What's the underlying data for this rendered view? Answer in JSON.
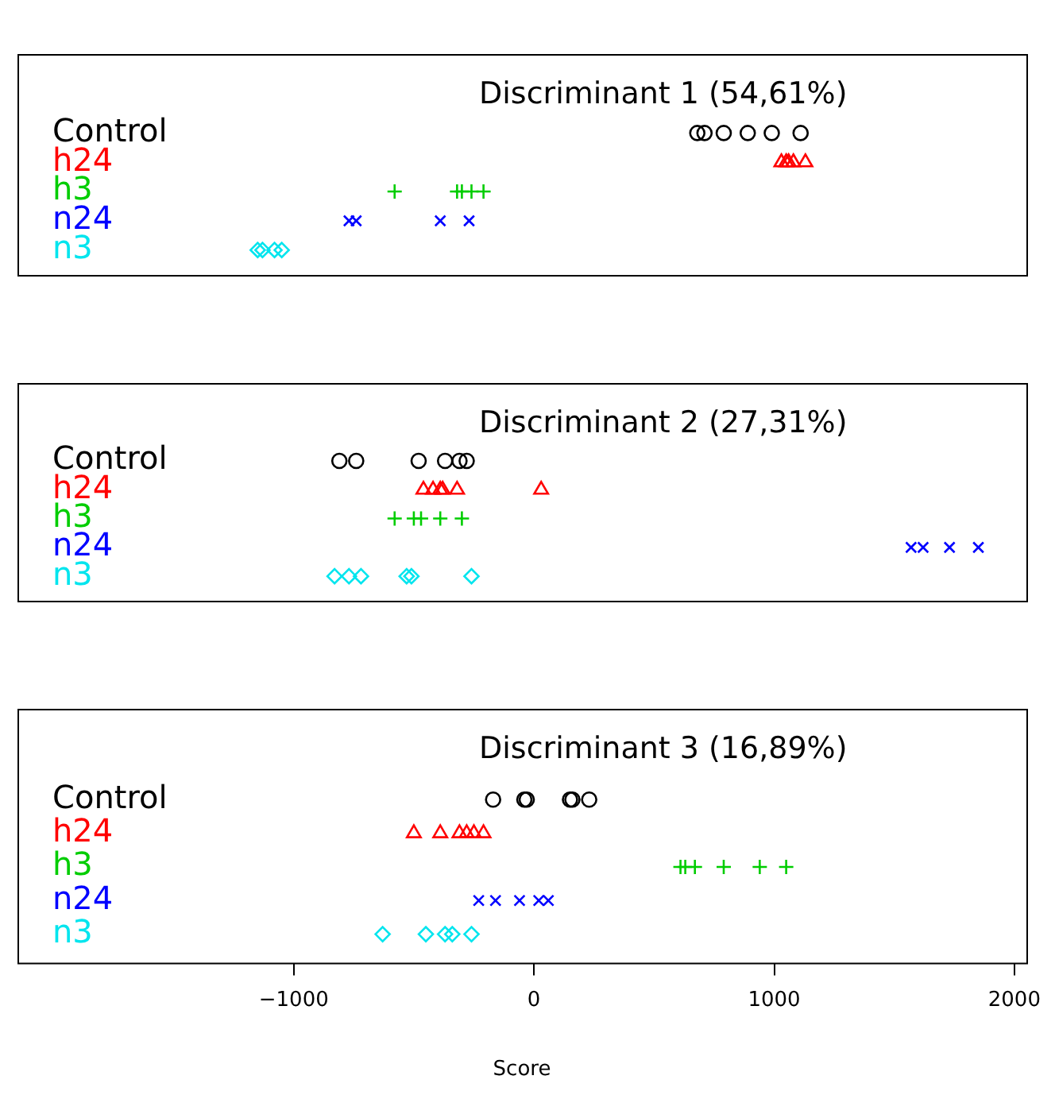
{
  "chart_data": [
    {
      "type": "scatter",
      "title": "Discriminant 1 (54,61%)",
      "orientation": "horizontal",
      "categories": [
        "Control",
        "h24",
        "h3",
        "n24",
        "n3"
      ],
      "xlim": [
        -2150,
        2050
      ],
      "tick_labels": "y",
      "grid": false,
      "legend": false,
      "series": [
        {
          "color": "#000000",
          "marker": "circle",
          "x": [
            "Control",
            "Control",
            "Control",
            "Control",
            "Control",
            "Control"
          ],
          "values": [
            680,
            710,
            790,
            890,
            990,
            1110
          ]
        },
        {
          "color": "#ff0000",
          "marker": "triangle",
          "x": [
            "h24",
            "h24",
            "h24",
            "h24",
            "h24"
          ],
          "values": [
            1030,
            1050,
            1060,
            1080,
            1130
          ]
        },
        {
          "color": "#00cd00",
          "marker": "cross",
          "x": [
            "h3",
            "h3",
            "h3",
            "h3",
            "h3"
          ],
          "values": [
            -580,
            -320,
            -300,
            -260,
            -210
          ]
        },
        {
          "color": "#0000ff",
          "marker": "x",
          "x": [
            "n24",
            "n24",
            "n24",
            "n24"
          ],
          "values": [
            -770,
            -740,
            -390,
            -270
          ]
        },
        {
          "color": "#00e5ee",
          "marker": "diamond",
          "x": [
            "n3",
            "n3",
            "n3",
            "n3"
          ],
          "values": [
            -1150,
            -1130,
            -1080,
            -1050
          ]
        }
      ]
    },
    {
      "type": "scatter",
      "title": "Discriminant 2 (27,31%)",
      "orientation": "horizontal",
      "categories": [
        "Control",
        "h24",
        "h3",
        "n24",
        "n3"
      ],
      "xlim": [
        -2150,
        2050
      ],
      "tick_labels": "y",
      "grid": false,
      "legend": false,
      "series": [
        {
          "color": "#000000",
          "marker": "circle",
          "x": [
            "Control",
            "Control",
            "Control",
            "Control",
            "Control",
            "Control"
          ],
          "values": [
            -810,
            -740,
            -480,
            -370,
            -310,
            -280
          ]
        },
        {
          "color": "#ff0000",
          "marker": "triangle",
          "x": [
            "h24",
            "h24",
            "h24",
            "h24",
            "h24",
            "h24"
          ],
          "values": [
            -460,
            -420,
            -390,
            -380,
            -320,
            30
          ]
        },
        {
          "color": "#00cd00",
          "marker": "cross",
          "x": [
            "h3",
            "h3",
            "h3",
            "h3",
            "h3"
          ],
          "values": [
            -580,
            -500,
            -470,
            -390,
            -300
          ]
        },
        {
          "color": "#0000ff",
          "marker": "x",
          "x": [
            "n24",
            "n24",
            "n24",
            "n24"
          ],
          "values": [
            1570,
            1620,
            1730,
            1850
          ]
        },
        {
          "color": "#00e5ee",
          "marker": "diamond",
          "x": [
            "n3",
            "n3",
            "n3",
            "n3",
            "n3",
            "n3"
          ],
          "values": [
            -830,
            -770,
            -720,
            -530,
            -510,
            -260
          ]
        }
      ]
    },
    {
      "type": "scatter",
      "title": "Discriminant 3 (16,89%)",
      "xlabel": "Score",
      "orientation": "horizontal",
      "categories": [
        "Control",
        "h24",
        "h3",
        "n24",
        "n3"
      ],
      "xlim": [
        -2150,
        2050
      ],
      "xticks": [
        {
          "value": -1000,
          "label": "−1000"
        },
        0,
        1000,
        2000
      ],
      "grid": false,
      "legend": false,
      "series": [
        {
          "color": "#000000",
          "marker": "circle",
          "x": [
            "Control",
            "Control",
            "Control",
            "Control",
            "Control",
            "Control"
          ],
          "values": [
            -170,
            -40,
            -30,
            150,
            160,
            230
          ]
        },
        {
          "color": "#ff0000",
          "marker": "triangle",
          "x": [
            "h24",
            "h24",
            "h24",
            "h24",
            "h24",
            "h24"
          ],
          "values": [
            -500,
            -390,
            -310,
            -280,
            -250,
            -210
          ]
        },
        {
          "color": "#00cd00",
          "marker": "cross",
          "x": [
            "h3",
            "h3",
            "h3",
            "h3",
            "h3",
            "h3"
          ],
          "values": [
            610,
            630,
            670,
            790,
            940,
            1050
          ]
        },
        {
          "color": "#0000ff",
          "marker": "x",
          "x": [
            "n24",
            "n24",
            "n24",
            "n24",
            "n24"
          ],
          "values": [
            -230,
            -160,
            -60,
            20,
            60
          ]
        },
        {
          "color": "#00e5ee",
          "marker": "diamond",
          "x": [
            "n3",
            "n3",
            "n3",
            "n3",
            "n3"
          ],
          "values": [
            -630,
            -450,
            -370,
            -340,
            -260
          ]
        }
      ]
    }
  ]
}
